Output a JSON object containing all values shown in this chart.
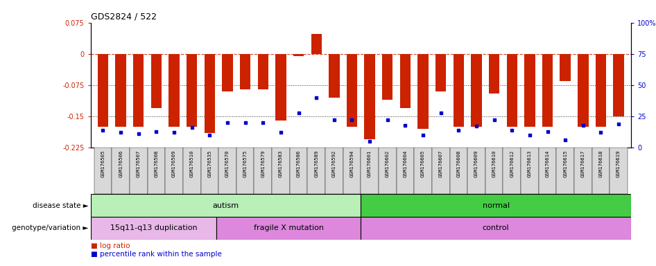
{
  "title": "GDS2824 / 522",
  "samples": [
    "GSM176505",
    "GSM176506",
    "GSM176507",
    "GSM176508",
    "GSM176509",
    "GSM176510",
    "GSM176535",
    "GSM176570",
    "GSM176575",
    "GSM176579",
    "GSM176583",
    "GSM176586",
    "GSM176589",
    "GSM176592",
    "GSM176594",
    "GSM176601",
    "GSM176602",
    "GSM176604",
    "GSM176605",
    "GSM176607",
    "GSM176608",
    "GSM176609",
    "GSM176610",
    "GSM176612",
    "GSM176613",
    "GSM176614",
    "GSM176615",
    "GSM176617",
    "GSM176618",
    "GSM176619"
  ],
  "log_ratio": [
    -0.175,
    -0.175,
    -0.175,
    -0.13,
    -0.175,
    -0.175,
    -0.19,
    -0.09,
    -0.085,
    -0.085,
    -0.16,
    -0.005,
    0.048,
    -0.105,
    -0.175,
    -0.205,
    -0.11,
    -0.13,
    -0.18,
    -0.09,
    -0.175,
    -0.175,
    -0.095,
    -0.175,
    -0.175,
    -0.175,
    -0.065,
    -0.175,
    -0.175,
    -0.15
  ],
  "percentile": [
    14,
    12,
    11,
    13,
    12,
    16,
    10,
    20,
    20,
    20,
    12,
    28,
    40,
    22,
    22,
    5,
    22,
    18,
    10,
    28,
    14,
    17,
    22,
    14,
    10,
    13,
    6,
    18,
    12,
    19
  ],
  "ylim_left": [
    -0.225,
    0.075
  ],
  "ylim_right": [
    0,
    100
  ],
  "bar_color": "#cc2200",
  "dot_color": "#0000cc",
  "disease_state_groups": [
    {
      "label": "autism",
      "start": 0,
      "end": 15,
      "color": "#b8f0b8"
    },
    {
      "label": "normal",
      "start": 15,
      "end": 30,
      "color": "#44cc44"
    }
  ],
  "genotype_groups": [
    {
      "label": "15q11-q13 duplication",
      "start": 0,
      "end": 7,
      "color": "#e8b8e8"
    },
    {
      "label": "fragile X mutation",
      "start": 7,
      "end": 15,
      "color": "#dd88dd"
    },
    {
      "label": "control",
      "start": 15,
      "end": 30,
      "color": "#dd88dd"
    }
  ],
  "left_yticks": [
    0.075,
    0,
    -0.075,
    -0.15,
    -0.225
  ],
  "left_yticklabels": [
    "0.075",
    "0",
    "-0.075",
    "-0.15",
    "-0.225"
  ],
  "right_yticks": [
    100,
    75,
    50,
    25,
    0
  ],
  "right_yticklabels": [
    "100%",
    "75",
    "50",
    "25",
    "0"
  ],
  "legend": [
    {
      "label": "log ratio",
      "color": "#cc2200"
    },
    {
      "label": "percentile rank within the sample",
      "color": "#0000cc"
    }
  ]
}
